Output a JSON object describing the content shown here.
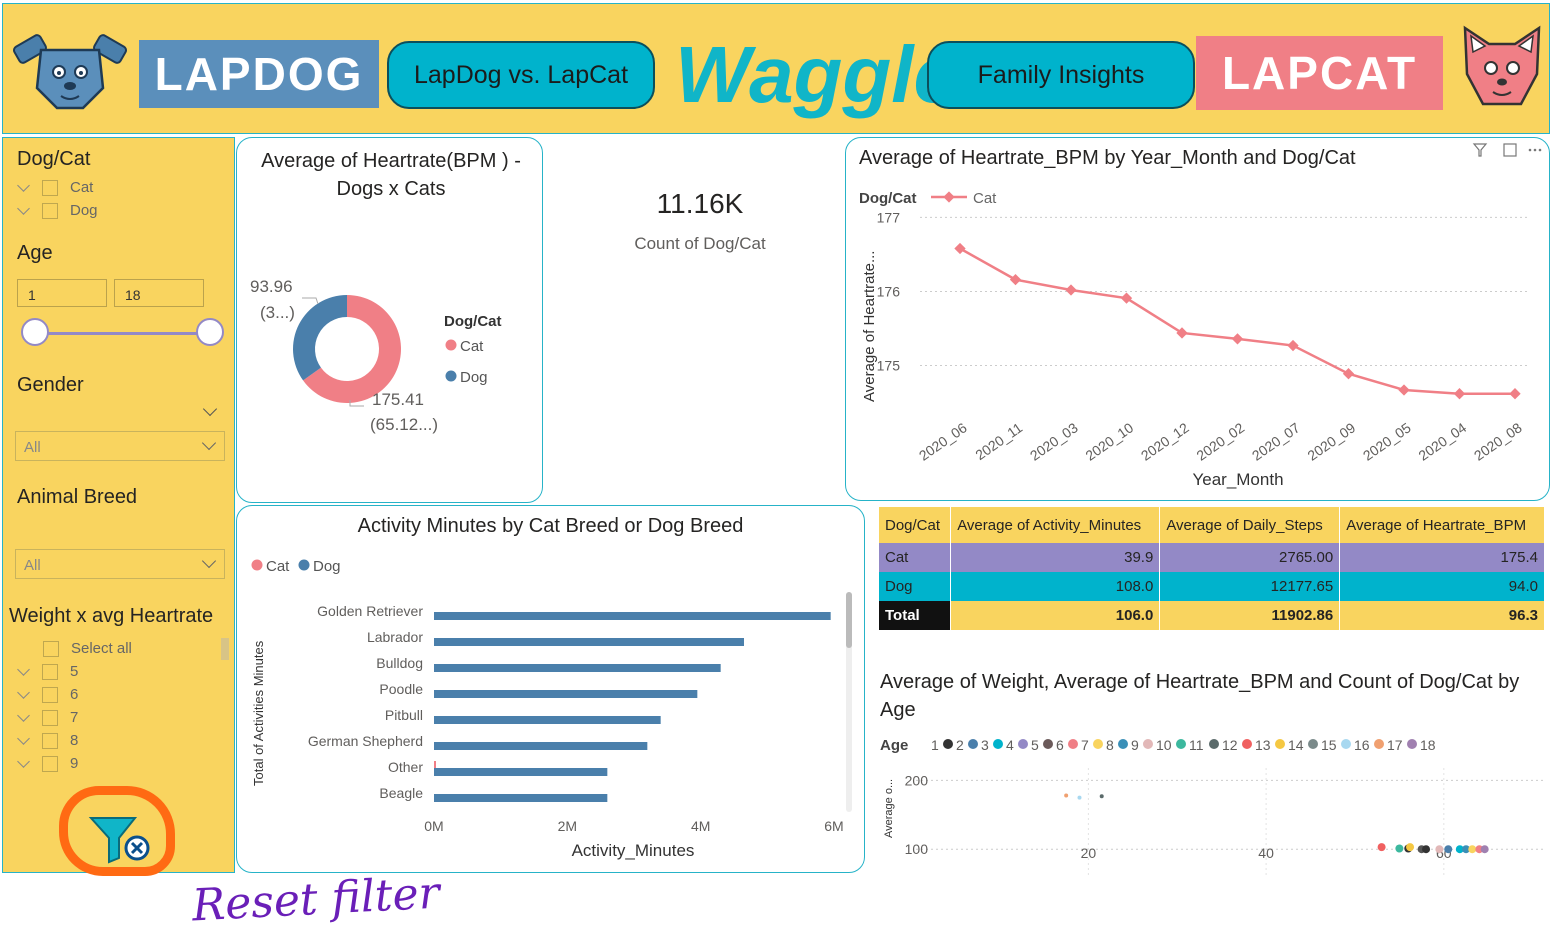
{
  "header": {
    "lapdog_logo": "LAPDOG",
    "compare_button": "LapDog vs. LapCat",
    "brand": "Waggle",
    "family_button": "Family Insights",
    "lapcat_logo": "LAPCAT"
  },
  "slicers": {
    "dogcat": {
      "title": "Dog/Cat",
      "options": [
        "Cat",
        "Dog"
      ]
    },
    "age": {
      "title": "Age",
      "min": "1",
      "max": "18"
    },
    "gender": {
      "title": "Gender",
      "value": "All"
    },
    "breed": {
      "title": "Animal Breed",
      "value": "All"
    },
    "weight": {
      "title": "Weight x avg Heartrate",
      "options": [
        "Select all",
        "5",
        "6",
        "7",
        "8",
        "9"
      ]
    }
  },
  "donut": {
    "title_line1": "Average of Heartrate(BPM ) -",
    "title_line2": "Dogs x Cats",
    "label_dog_value": "93.96",
    "label_dog_pct": "(3...)",
    "label_cat_value": "175.41",
    "label_cat_pct": "(65.12...)",
    "legend_title": "Dog/Cat",
    "legend": [
      "Cat",
      "Dog"
    ],
    "colors": {
      "cat": "#f07f86",
      "dog": "#4a7fab"
    }
  },
  "kpi": {
    "value": "11.16K",
    "label": "Count of Dog/Cat"
  },
  "line_chart": {
    "title": "Average of Heartrate_BPM by Year_Month and Dog/Cat",
    "legend_title": "Dog/Cat",
    "legend_item": "Cat",
    "ylabel": "Average of Heartrate...",
    "xlabel": "Year_Month"
  },
  "bar_chart": {
    "title": "Activity Minutes by Cat Breed or Dog Breed",
    "legend": [
      "Cat",
      "Dog"
    ],
    "ylabel": "Total of Activities Minutes",
    "xlabel": "Activity_Minutes"
  },
  "table": {
    "headers": [
      "Dog/Cat",
      "Average of Activity_Minutes",
      "Average of Daily_Steps",
      "Average of Heartrate_BPM"
    ],
    "rows": [
      [
        "Cat",
        "39.9",
        "2765.00",
        "175.4"
      ],
      [
        "Dog",
        "108.0",
        "12177.65",
        "94.0"
      ]
    ],
    "total": [
      "Total",
      "106.0",
      "11902.86",
      "96.3"
    ]
  },
  "scatter": {
    "title_line1": "Average of Weight, Average of Heartrate_BPM and Count of Dog/Cat by",
    "title_line2": "Age",
    "legend_title": "Age",
    "ylabel": "Average o..."
  },
  "annotation": {
    "text": "Reset filter"
  },
  "chart_data": [
    {
      "type": "pie",
      "title": "Average of Heartrate(BPM ) - Dogs x Cats",
      "categories": [
        "Cat",
        "Dog"
      ],
      "values": [
        175.41,
        93.96
      ]
    },
    {
      "type": "line",
      "title": "Average of Heartrate_BPM by Year_Month and Dog/Cat",
      "xlabel": "Year_Month",
      "ylabel": "Average of Heartrate...",
      "x": [
        "2020_06",
        "2020_11",
        "2020_03",
        "2020_10",
        "2020_12",
        "2020_02",
        "2020_07",
        "2020_09",
        "2020_05",
        "2020_04",
        "2020_08"
      ],
      "series": [
        {
          "name": "Cat",
          "values": [
            176.58,
            176.16,
            176.02,
            175.91,
            175.44,
            175.36,
            175.27,
            174.89,
            174.67,
            174.62,
            174.62
          ]
        }
      ],
      "yticks": [
        175,
        176,
        177
      ],
      "ylim": [
        174.4,
        177.1
      ],
      "grid": true,
      "legend": "top-left"
    },
    {
      "type": "bar",
      "orientation": "horizontal",
      "title": "Activity Minutes by Cat Breed or Dog Breed",
      "xlabel": "Activity_Minutes",
      "ylabel": "Total of Activities Minutes",
      "categories": [
        "Golden Retriever",
        "Labrador",
        "Bulldog",
        "Poodle",
        "Pitbull",
        "German Shepherd",
        "Other",
        "Beagle"
      ],
      "series": [
        {
          "name": "Cat",
          "values": [
            0,
            0,
            0,
            0,
            0,
            0,
            0.02,
            0
          ]
        },
        {
          "name": "Dog",
          "values": [
            5.95,
            4.65,
            4.3,
            3.95,
            3.4,
            3.2,
            2.6,
            2.6
          ]
        }
      ],
      "unit": "M",
      "xticks": [
        "0M",
        "2M",
        "4M",
        "6M"
      ],
      "xlim": [
        0,
        6
      ],
      "legend": "top-left"
    },
    {
      "type": "scatter",
      "title": "Average of Weight, Average of Heartrate_BPM and Count of Dog/Cat by Age",
      "ylabel": "Average o...",
      "legend_title": "Age",
      "legend": [
        "1",
        "2",
        "3",
        "4",
        "5",
        "6",
        "7",
        "8",
        "9",
        "10",
        "11",
        "12",
        "13",
        "14",
        "15",
        "16",
        "17",
        "18"
      ],
      "legend_colors": [
        "#555555",
        "#333333",
        "#4a7fab",
        "#00b3cc",
        "#9389c6",
        "#6b5a5a",
        "#f07f86",
        "#f9d45f",
        "#3a8fb7",
        "#e2b8b8",
        "#3cb89e",
        "#5a6a6a",
        "#f06060",
        "#f5c842",
        "#7a8a8a",
        "#a8d8f0",
        "#f0a070",
        "#a080b0"
      ],
      "xticks": [
        20,
        40,
        60
      ],
      "yticks": [
        100,
        200
      ],
      "points": [
        {
          "x": 17.5,
          "y": 178,
          "age": "17"
        },
        {
          "x": 19,
          "y": 175,
          "age": "16"
        },
        {
          "x": 21.5,
          "y": 177,
          "age": "12"
        },
        {
          "x": 53,
          "y": 103,
          "age": "13"
        },
        {
          "x": 55,
          "y": 101,
          "age": "11"
        },
        {
          "x": 56,
          "y": 101,
          "age": "2"
        },
        {
          "x": 56.2,
          "y": 103,
          "age": "14"
        },
        {
          "x": 57.5,
          "y": 100,
          "age": "1"
        },
        {
          "x": 58,
          "y": 100,
          "age": "2"
        },
        {
          "x": 59.5,
          "y": 100,
          "age": "10"
        },
        {
          "x": 60.5,
          "y": 100,
          "age": "3"
        },
        {
          "x": 61.8,
          "y": 100,
          "age": "4"
        },
        {
          "x": 62.5,
          "y": 100,
          "age": "9"
        },
        {
          "x": 63.2,
          "y": 100,
          "age": "8"
        },
        {
          "x": 64,
          "y": 100,
          "age": "7"
        },
        {
          "x": 64.6,
          "y": 100,
          "age": "18"
        }
      ]
    }
  ]
}
